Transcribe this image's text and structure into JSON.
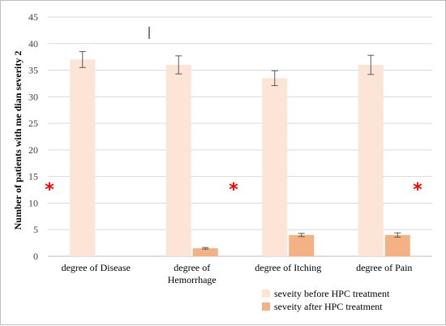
{
  "chart_data": {
    "type": "bar",
    "ylabel": "Number of patients with me dian severity 2",
    "ylim": [
      0,
      45
    ],
    "yticks": [
      0,
      5,
      10,
      15,
      20,
      25,
      30,
      35,
      40,
      45
    ],
    "grid": true,
    "legend_position": "bottom-right",
    "categories": [
      [
        "degree of Disease"
      ],
      [
        "degree of",
        "Hemorrhage"
      ],
      [
        "degree of Itching"
      ],
      [
        "degree of Pain"
      ]
    ],
    "series": [
      {
        "name": "seveity before HPC treatment",
        "color": "#fce4d6",
        "values": [
          37,
          36,
          33.5,
          36
        ],
        "error": [
          1.5,
          1.7,
          1.4,
          1.8
        ]
      },
      {
        "name": "seveity after HPC treatment",
        "color": "#f4b183",
        "values": [
          0,
          1.5,
          4,
          4
        ],
        "error": [
          0,
          0.15,
          0.3,
          0.4
        ]
      }
    ],
    "annotations": [
      "*",
      "*",
      "*"
    ]
  }
}
